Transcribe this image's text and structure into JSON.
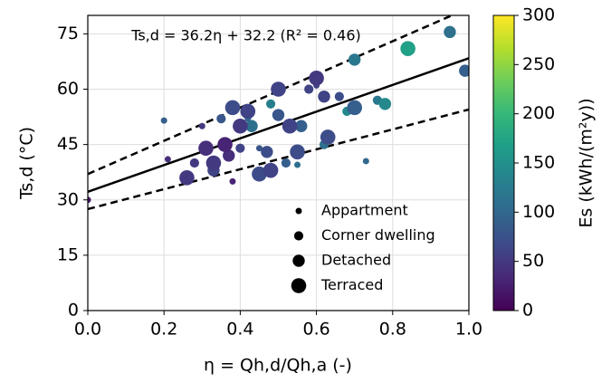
{
  "chart_data": {
    "type": "scatter",
    "xlabel": "η = Qh,d/Qh,a (-)",
    "ylabel": "Ts,d (°C)",
    "annotation": "Ts,d = 36.2η + 32.2 (R² = 0.46)",
    "xlim": [
      0,
      1
    ],
    "ylim": [
      0,
      80
    ],
    "xticks": [
      {
        "value": 0,
        "label": "0.0"
      },
      0.2,
      0.4,
      0.6,
      0.8,
      {
        "value": 1,
        "label": "1.0"
      }
    ],
    "yticks": [
      0,
      15,
      30,
      45,
      60,
      75
    ],
    "grid": true,
    "colorbar": {
      "label": "Es (kWh/(m²y))",
      "clim": [
        0,
        300
      ],
      "ticks": [
        0,
        50,
        100,
        150,
        200,
        250,
        300
      ],
      "colormap": "viridis"
    },
    "series": [
      {
        "name": "Appartment",
        "x": [
          0.2,
          0.21,
          0.0,
          0.38,
          0.73,
          0.55,
          0.45,
          0.6,
          0.42,
          0.3
        ],
        "values": [
          51.5,
          41,
          30,
          35,
          40.5,
          39.5,
          44,
          61,
          52,
          50
        ],
        "color_values": [
          90,
          40,
          20,
          30,
          100,
          110,
          80,
          60,
          100,
          50
        ]
      },
      {
        "name": "Corner dwelling",
        "x": [
          0.28,
          0.35,
          0.48,
          0.62,
          0.58,
          0.66,
          0.68,
          0.4,
          0.52,
          0.76
        ],
        "values": [
          40,
          52,
          56,
          45,
          60,
          58,
          54,
          44,
          40,
          57
        ],
        "color_values": [
          50,
          80,
          130,
          110,
          60,
          70,
          140,
          60,
          90,
          120
        ]
      },
      {
        "name": "Detached",
        "x": [
          0.33,
          0.43,
          0.47,
          0.56,
          0.7,
          0.78,
          0.62,
          0.37,
          0.5,
          0.95,
          0.99
        ],
        "values": [
          38,
          50,
          43,
          50,
          68,
          56,
          58,
          42,
          53,
          75.5,
          65
        ],
        "color_values": [
          60,
          110,
          70,
          90,
          120,
          140,
          60,
          40,
          80,
          110,
          90
        ]
      },
      {
        "name": "Terraced",
        "x": [
          0.26,
          0.31,
          0.33,
          0.36,
          0.4,
          0.42,
          0.45,
          0.48,
          0.5,
          0.6,
          0.53,
          0.63,
          0.7,
          0.84,
          0.38,
          0.55
        ],
        "values": [
          36,
          44,
          40,
          45,
          50,
          54,
          37,
          38,
          60,
          63,
          50,
          47,
          55,
          71,
          55,
          43
        ],
        "color_values": [
          50,
          40,
          50,
          30,
          50,
          60,
          70,
          60,
          60,
          50,
          60,
          70,
          90,
          170,
          70,
          70
        ]
      }
    ],
    "lines": [
      {
        "style": "solid",
        "x": [
          0,
          1
        ],
        "values": [
          32.2,
          68.4
        ]
      },
      {
        "style": "dashed",
        "x": [
          0,
          1
        ],
        "values": [
          37,
          82
        ]
      },
      {
        "style": "dashed",
        "x": [
          0,
          1
        ],
        "values": [
          27.5,
          54.5
        ]
      }
    ]
  }
}
